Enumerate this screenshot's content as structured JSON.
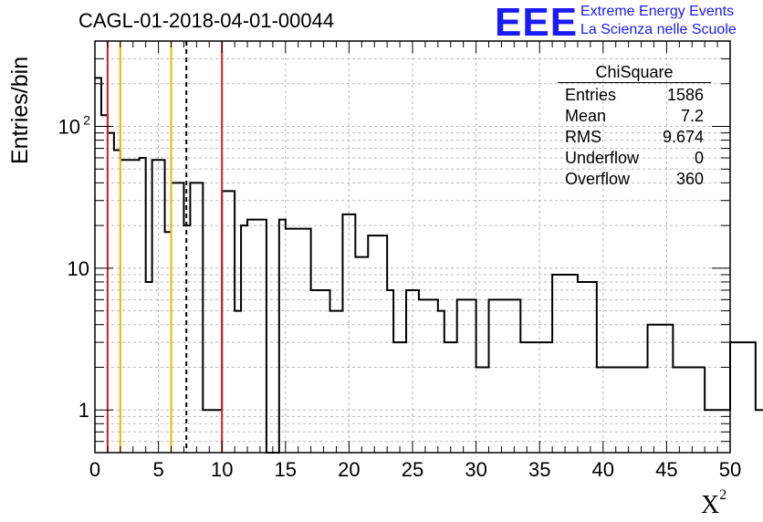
{
  "header": {
    "title": "CAGL-01-2018-04-01-00044",
    "logo_text": "EEE",
    "logo_line1": "Extreme Energy Events",
    "logo_line2": "La Scienza nelle Scuole"
  },
  "stats": {
    "title": "ChiSquare",
    "rows": [
      {
        "label": "Entries",
        "value": "1586"
      },
      {
        "label": "Mean",
        "value": "7.2"
      },
      {
        "label": "RMS",
        "value": "9.674"
      },
      {
        "label": "Underflow",
        "value": "0"
      },
      {
        "label": "Overflow",
        "value": "360"
      }
    ]
  },
  "chart_data": {
    "type": "histogram",
    "ylabel": "Entries/bin",
    "xlabel": "X",
    "xlabel_superscript": "2",
    "xlim": [
      0,
      50
    ],
    "ylim": [
      0.5,
      400
    ],
    "y_scale": "log",
    "grid": true,
    "bin_width": 0.5,
    "x_ticks": [
      0,
      5,
      10,
      15,
      20,
      25,
      30,
      35,
      40,
      45,
      50
    ],
    "y_ticks": [
      {
        "value": 1,
        "label": "1"
      },
      {
        "value": 10,
        "label": "10"
      },
      {
        "value": 100,
        "label": "10",
        "sup": "2"
      }
    ],
    "values": [
      220,
      120,
      90,
      68,
      58,
      58,
      58,
      60,
      8,
      58,
      58,
      18,
      40,
      40,
      20,
      40,
      40,
      1,
      1,
      1,
      35,
      35,
      5,
      20,
      22,
      22,
      22,
      0,
      0,
      22,
      19,
      19,
      19,
      19,
      7,
      7,
      7,
      5,
      5,
      24,
      24,
      12,
      12,
      17,
      17,
      17,
      7,
      3,
      3,
      7,
      7,
      6,
      6,
      6,
      5,
      3,
      3,
      6,
      6,
      6,
      2,
      2,
      6,
      6,
      6,
      6,
      6,
      3,
      3,
      3,
      3,
      3,
      9,
      9,
      9,
      9,
      8,
      8,
      8,
      2,
      2,
      2,
      2,
      2,
      2,
      2,
      2,
      4,
      4,
      4,
      4,
      2,
      2,
      2,
      2,
      2,
      1,
      1,
      1,
      1,
      3,
      3,
      3,
      3,
      1,
      1,
      1,
      1,
      1,
      1,
      1,
      2,
      2,
      1,
      1,
      4,
      4,
      4,
      4,
      4,
      4,
      4,
      4,
      4,
      2,
      2,
      2,
      2,
      1,
      1,
      2,
      2,
      2,
      2,
      2,
      2,
      2,
      2,
      1,
      1,
      1,
      1,
      1,
      1,
      1,
      1,
      1,
      1,
      1,
      1
    ],
    "reference_lines": [
      {
        "x": 1,
        "color": "#d42020",
        "style": "solid"
      },
      {
        "x": 2,
        "color": "#e8b800",
        "style": "solid"
      },
      {
        "x": 6,
        "color": "#e8b800",
        "style": "solid"
      },
      {
        "x": 7.2,
        "color": "#000000",
        "style": "dashed"
      },
      {
        "x": 10,
        "color": "#d42020",
        "style": "solid"
      }
    ]
  }
}
